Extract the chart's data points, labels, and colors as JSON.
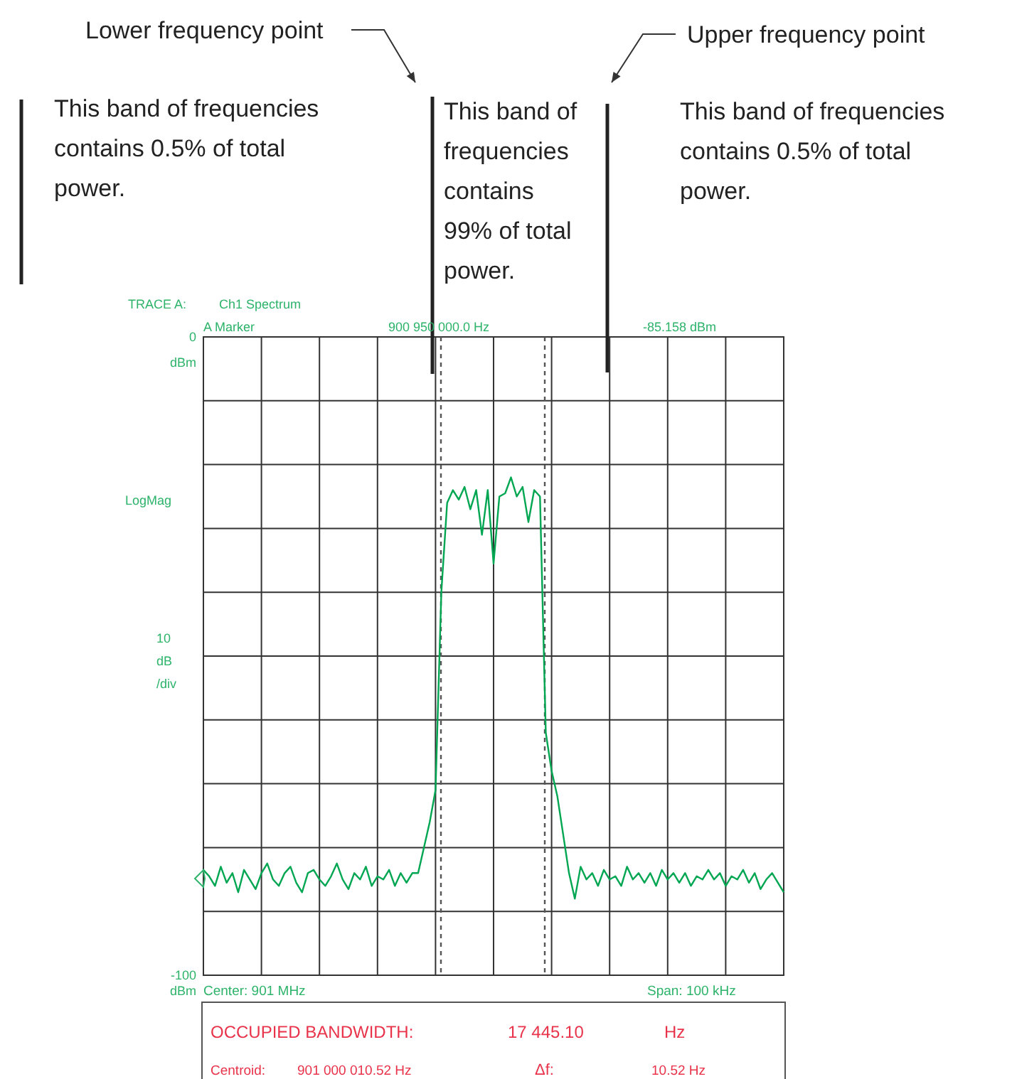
{
  "chart_data": {
    "type": "line",
    "categories": [
      null,
      null,
      null,
      null,
      null,
      null,
      null,
      null,
      null,
      null,
      null,
      null,
      null,
      null,
      null,
      null,
      null,
      null,
      null,
      null,
      null,
      null,
      null,
      null,
      null,
      null,
      null,
      null,
      null,
      null,
      null,
      null,
      null,
      null,
      null,
      null,
      null,
      null,
      null,
      null,
      null,
      null,
      null,
      null,
      null,
      null,
      null,
      null,
      null,
      null,
      null,
      null,
      null,
      null,
      null,
      null,
      null,
      null,
      null,
      null,
      null,
      null,
      null,
      null,
      null,
      null,
      null,
      null,
      null,
      null,
      null,
      null,
      null,
      null,
      null,
      null,
      null,
      null,
      null,
      null,
      null,
      null,
      null,
      null,
      null,
      null,
      null,
      null,
      null,
      null,
      null,
      null,
      null,
      null,
      null,
      null,
      null,
      null,
      null,
      null,
      null
    ],
    "series": [
      {
        "color": "#00a651",
        "values": [
          -83.5,
          -84.5,
          -86,
          -83,
          -85.5,
          -84,
          -87,
          -83.5,
          -85,
          -86.5,
          -84,
          -82.5,
          -85,
          -86,
          -84,
          -83,
          -85.5,
          -87,
          -84,
          -83.5,
          -85,
          -86,
          -84.5,
          -82.5,
          -85,
          -86.5,
          -84,
          -85,
          -83,
          -86,
          -84.5,
          -85,
          -83.5,
          -86,
          -84,
          -85.5,
          -84,
          -84,
          -80,
          -76,
          -71,
          -40,
          -26,
          -24,
          -25.5,
          -23.5,
          -27,
          -24,
          -31,
          -24,
          -35.5,
          -25,
          -24.5,
          -22,
          -25,
          -23.5,
          -29,
          -24,
          -25,
          -62,
          -68,
          -72,
          -78,
          -84,
          -88,
          -83,
          -85,
          -84,
          -86,
          -83.5,
          -85,
          -84.5,
          -86,
          -83,
          -85,
          -84,
          -85.5,
          -84,
          -86,
          -83.5,
          -85,
          -84,
          -85.5,
          -84,
          -86,
          -84.5,
          -85,
          -83.5,
          -85,
          -84,
          -86,
          -84.5,
          -85,
          -83.5,
          -85.5,
          -84,
          -86.5,
          -85,
          -84,
          -85.5,
          -87
        ]
      }
    ],
    "ylim": [
      -100,
      0
    ],
    "yticks": [
      0,
      {
        "value": -10,
        "label": null
      },
      {
        "value": -20,
        "label": null
      },
      {
        "value": -30,
        "label": null
      },
      {
        "value": -40,
        "label": null
      },
      {
        "value": -50,
        "label": null
      },
      {
        "value": -60,
        "label": null
      },
      {
        "value": -70,
        "label": null
      },
      {
        "value": -80,
        "label": null
      },
      {
        "value": -90,
        "label": null
      },
      -100
    ],
    "tick_labels": "y",
    "grid": true,
    "annotations": [
      "This band of frequencies\ncontains 0.5% of total\npower.",
      "This band of\nfrequencies\ncontains\n99% of total\npower.",
      "This band of frequencies\ncontains 0.5% of total\npower.",
      "TRACE A:",
      "Ch1 Spectrum",
      "A Marker",
      "900 950 000.0 Hz",
      "-85.158  dBm",
      "LogMag",
      "10\ndB\n/div",
      "Center:  901 MHz",
      "Span:  100 kHz",
      "OCCUPIED BANDWIDTH:",
      "17 445.10",
      "Hz",
      "Centroid:",
      "901 000 010.52 Hz",
      "Δf:",
      "10.52 Hz",
      "dBm",
      "dBm",
      "Lower frequency point",
      "Upper frequency point"
    ]
  }
}
